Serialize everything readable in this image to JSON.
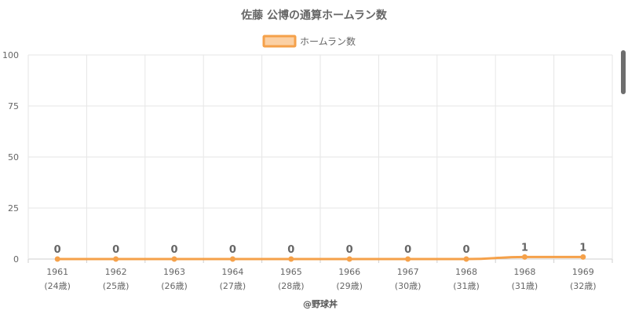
{
  "chart_data": {
    "type": "line",
    "title": "佐藤 公博の通算ホームラン数",
    "legend": {
      "label": "ホームラン数",
      "placement": "top-center"
    },
    "ylim": [
      0,
      100
    ],
    "yticks": [
      0,
      25,
      50,
      75,
      100
    ],
    "grid": true,
    "categories": [
      {
        "year": "1961",
        "age": "(24歳)"
      },
      {
        "year": "1962",
        "age": "(25歳)"
      },
      {
        "year": "1963",
        "age": "(26歳)"
      },
      {
        "year": "1964",
        "age": "(27歳)"
      },
      {
        "year": "1965",
        "age": "(28歳)"
      },
      {
        "year": "1966",
        "age": "(29歳)"
      },
      {
        "year": "1967",
        "age": "(30歳)"
      },
      {
        "year": "1968",
        "age": "(31歳)"
      },
      {
        "year": "1968",
        "age": "(31歳)"
      },
      {
        "year": "1969",
        "age": "(32歳)"
      }
    ],
    "series": [
      {
        "name": "ホームラン数",
        "values": [
          0,
          0,
          0,
          0,
          0,
          0,
          0,
          0,
          1,
          1
        ]
      }
    ],
    "colors": {
      "line": "#f5a14a",
      "legend_fill": "#fbd0a4",
      "legend_border": "#f5a14a"
    }
  },
  "credit": "@野球丼"
}
